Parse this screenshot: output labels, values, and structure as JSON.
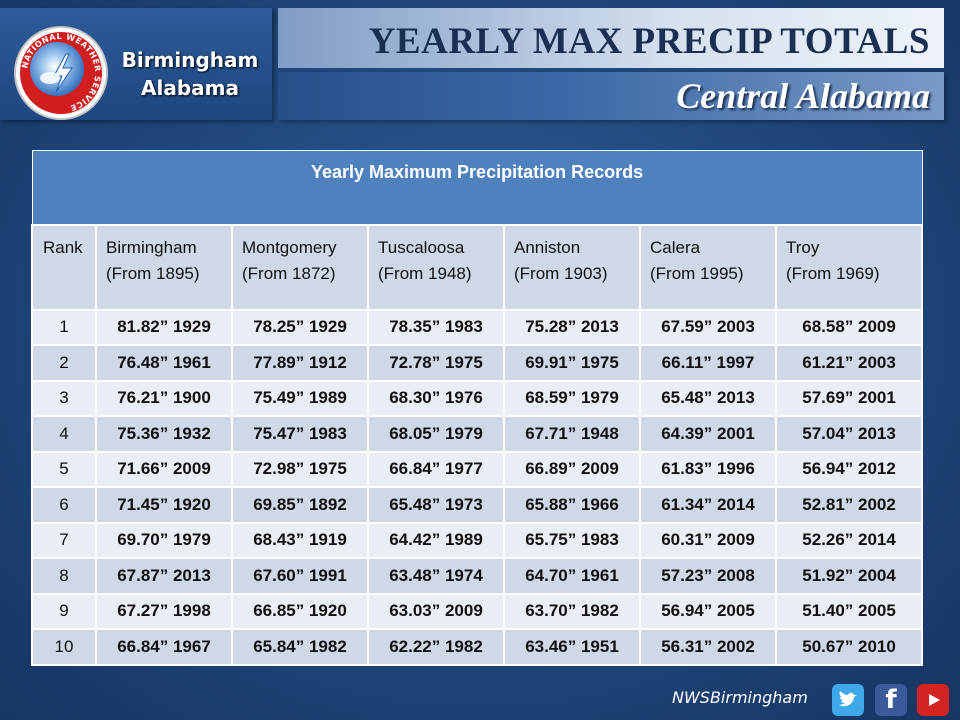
{
  "header": {
    "city_line1": "Birmingham",
    "city_line2": "Alabama",
    "title": "YEARLY MAX PRECIP TOTALS",
    "subtitle": "Central Alabama",
    "logo_ring_text": "NATIONAL WEATHER SERVICE"
  },
  "table": {
    "caption": "Yearly Maximum Precipitation Records",
    "columns": [
      {
        "label": "Rank",
        "sub": ""
      },
      {
        "label": "Birmingham",
        "sub": "(From 1895)"
      },
      {
        "label": "Montgomery",
        "sub": "(From 1872)"
      },
      {
        "label": "Tuscaloosa",
        "sub": "(From 1948)"
      },
      {
        "label": "Anniston",
        "sub": "(From 1903)"
      },
      {
        "label": "Calera",
        "sub": "(From  1995)"
      },
      {
        "label": "Troy",
        "sub": "(From 1969)"
      }
    ],
    "rows": [
      [
        "1",
        "81.82”  1929",
        "78.25”  1929",
        "78.35”  1983",
        "75.28”  2013",
        "67.59”  2003",
        "68.58”  2009"
      ],
      [
        "2",
        "76.48”  1961",
        "77.89”  1912",
        "72.78”  1975",
        "69.91”  1975",
        "66.11”  1997",
        "61.21”  2003"
      ],
      [
        "3",
        "76.21”  1900",
        "75.49”  1989",
        "68.30”  1976",
        "68.59”  1979",
        "65.48”  2013",
        "57.69”  2001"
      ],
      [
        "4",
        "75.36”  1932",
        "75.47”  1983",
        "68.05”  1979",
        "67.71”  1948",
        "64.39”  2001",
        "57.04”  2013"
      ],
      [
        "5",
        "71.66”  2009",
        "72.98”  1975",
        "66.84”  1977",
        "66.89”  2009",
        "61.83”  1996",
        "56.94”  2012"
      ],
      [
        "6",
        "71.45”  1920",
        "69.85”  1892",
        "65.48”  1973",
        "65.88”  1966",
        "61.34”  2014",
        "52.81”  2002"
      ],
      [
        "7",
        "69.70”  1979",
        "68.43”  1919",
        "64.42”  1989",
        "65.75”  1983",
        "60.31”  2009",
        "52.26”  2014"
      ],
      [
        "8",
        "67.87”  2013",
        "67.60”  1991",
        "63.48”  1974",
        "64.70”  1961",
        "57.23”  2008",
        "51.92”  2004"
      ],
      [
        "9",
        "67.27”  1998",
        "66.85”  1920",
        "63.03”  2009",
        "63.70”  1982",
        "56.94”  2005",
        "51.40”  2005"
      ],
      [
        "10",
        "66.84”  1967",
        "65.84”  1982",
        "62.22”  1982",
        "63.46”  1951",
        "56.31”  2002",
        "50.67”  2010"
      ]
    ]
  },
  "footer": {
    "handle": "NWSBirmingham",
    "icons": [
      "twitter-icon",
      "facebook-icon",
      "youtube-icon"
    ]
  },
  "colors": {
    "caption_bg": "#4f81bd",
    "header_bg": "#d0d8e8",
    "row_light": "#e9edf4",
    "title_text": "#1b2f52"
  }
}
